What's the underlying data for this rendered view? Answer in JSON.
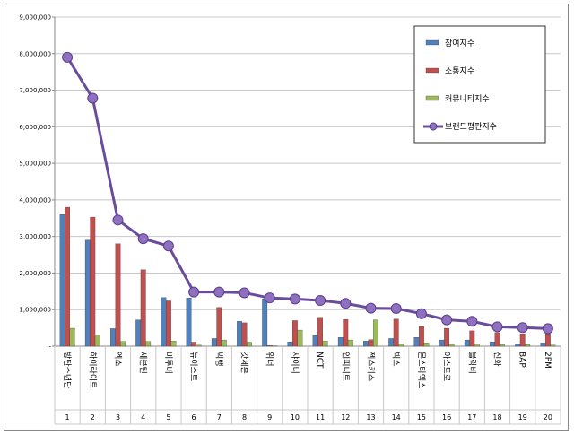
{
  "chart_data": {
    "type": "bar",
    "title": "",
    "xlabel": "",
    "ylabel": "",
    "ylim": [
      0,
      9000000
    ],
    "yticks": [
      0,
      1000000,
      2000000,
      3000000,
      4000000,
      5000000,
      6000000,
      7000000,
      8000000,
      9000000
    ],
    "ytick_labels": [
      "-",
      "1,000,000",
      "2,000,000",
      "3,000,000",
      "4,000,000",
      "5,000,000",
      "6,000,000",
      "7,000,000",
      "8,000,000",
      "9,000,000"
    ],
    "grid": true,
    "legend_position": "top-right",
    "categories": [
      "방탄소년단",
      "하이라이트",
      "엑소",
      "세븐틴",
      "비투비",
      "뉴이스트",
      "빅뱅",
      "갓세븐",
      "위너",
      "샤이니",
      "NCT",
      "인피니트",
      "젝스키스",
      "빅스",
      "몬스타엑스",
      "아스트로",
      "블락비",
      "신화",
      "BAP",
      "2PM"
    ],
    "ranks": [
      "1",
      "2",
      "3",
      "4",
      "5",
      "6",
      "7",
      "8",
      "9",
      "10",
      "11",
      "12",
      "13",
      "14",
      "15",
      "16",
      "17",
      "18",
      "19",
      "20"
    ],
    "series": [
      {
        "name": "참여지수",
        "kind": "bar",
        "color": "#4f81bd",
        "values": [
          3600000,
          2900000,
          480000,
          720000,
          1330000,
          1320000,
          210000,
          680000,
          1300000,
          120000,
          290000,
          240000,
          140000,
          210000,
          240000,
          170000,
          170000,
          120000,
          60000,
          90000
        ]
      },
      {
        "name": "소통지수",
        "kind": "bar",
        "color": "#c0504d",
        "values": [
          3800000,
          3530000,
          2800000,
          2090000,
          1240000,
          110000,
          1060000,
          640000,
          20000,
          700000,
          790000,
          730000,
          180000,
          740000,
          540000,
          490000,
          420000,
          370000,
          340000,
          340000
        ]
      },
      {
        "name": "커뮤니티지수",
        "kind": "bar",
        "color": "#9bbb59",
        "values": [
          490000,
          300000,
          130000,
          130000,
          140000,
          30000,
          170000,
          110000,
          10000,
          440000,
          140000,
          170000,
          720000,
          60000,
          90000,
          50000,
          60000,
          40000,
          40000,
          30000
        ]
      },
      {
        "name": "브랜드평판지수",
        "kind": "line",
        "color": "#6a4c9c",
        "values": [
          7900000,
          6780000,
          3450000,
          2940000,
          2740000,
          1480000,
          1480000,
          1460000,
          1320000,
          1290000,
          1250000,
          1170000,
          1040000,
          1030000,
          890000,
          720000,
          680000,
          530000,
          510000,
          480000
        ]
      }
    ]
  }
}
